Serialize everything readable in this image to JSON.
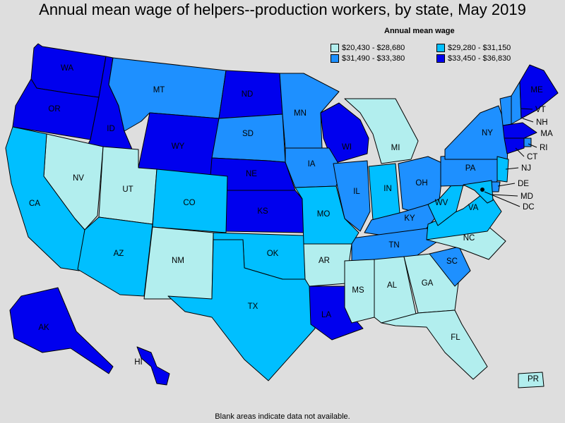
{
  "title": "Annual mean wage of helpers--production workers, by state, May 2019",
  "legend": {
    "title": "Annual mean wage",
    "bins": [
      {
        "id": "b1",
        "label": "$20,430 - $28,680",
        "color": "#b2eeee"
      },
      {
        "id": "b2",
        "label": "$29,280 - $31,150",
        "color": "#00bfff"
      },
      {
        "id": "b3",
        "label": "$31,490 - $33,380",
        "color": "#1e90ff"
      },
      {
        "id": "b4",
        "label": "$33,450 - $36,830",
        "color": "#0000ee"
      }
    ]
  },
  "footnote": "Blank areas indicate data not available.",
  "states": {
    "WA": "b4",
    "OR": "b4",
    "ID": "b4",
    "MT": "b3",
    "WY": "b4",
    "ND": "b4",
    "SD": "b3",
    "NE": "b4",
    "KS": "b4",
    "MN": "b3",
    "WI": "b4",
    "IA": "b3",
    "IL": "b3",
    "MI": "b1",
    "IN": "b2",
    "OH": "b3",
    "KY": "b3",
    "TN": "b3",
    "NV": "b1",
    "UT": "b1",
    "CA": "b2",
    "AZ": "b2",
    "CO": "b2",
    "NM": "b1",
    "OK": "b2",
    "TX": "b2",
    "MO": "b2",
    "AR": "b1",
    "LA": "b4",
    "MS": "b1",
    "AL": "b1",
    "GA": "b1",
    "FL": "b1",
    "SC": "b3",
    "NC": "b1",
    "VA": "b2",
    "WV": "b2",
    "PA": "b3",
    "NY": "b3",
    "VT": "b3",
    "NH": "b3",
    "ME": "b4",
    "MA": "b4",
    "RI": "b3",
    "CT": "b4",
    "NJ": "b2",
    "DE": "b3",
    "MD": "b2",
    "DC": "b4",
    "AK": "b4",
    "HI": "b4",
    "PR": "b1"
  }
}
